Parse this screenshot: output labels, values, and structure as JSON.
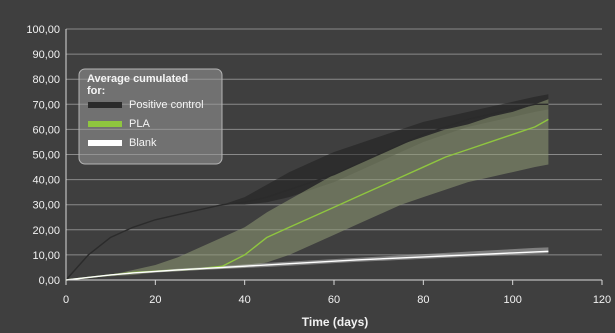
{
  "chart_data": {
    "type": "line",
    "title": "",
    "xlabel": "Time (days)",
    "ylabel": "",
    "xlim": [
      0,
      120
    ],
    "ylim": [
      0,
      100
    ],
    "x_ticks": [
      "0",
      "20",
      "40",
      "60",
      "80",
      "100",
      "120"
    ],
    "y_ticks": [
      "0,00",
      "10,00",
      "20,00",
      "30,00",
      "40,00",
      "50,00",
      "60,00",
      "70,00",
      "80,00",
      "90,00",
      "100,00"
    ],
    "grid": true,
    "legend": {
      "title": "Average cumulated for:",
      "placement": "top-left",
      "entries": [
        "Positive control",
        "PLA",
        "Blank"
      ]
    },
    "series": [
      {
        "name": "Positive control",
        "color": "#2b2b2b",
        "x": [
          0,
          5,
          10,
          15,
          20,
          25,
          30,
          35,
          40,
          45,
          50,
          55,
          60,
          65,
          70,
          75,
          80,
          85,
          90,
          95,
          100,
          105,
          108
        ],
        "y": [
          0,
          10,
          17,
          21,
          24,
          26,
          28,
          30,
          31,
          33,
          36,
          39,
          42,
          46,
          50,
          54,
          58,
          61,
          64,
          66,
          68,
          70,
          70
        ],
        "band_upper": [
          0,
          10,
          17,
          21,
          24,
          26,
          28,
          30,
          33,
          38,
          43,
          47,
          51,
          54,
          57,
          60,
          63,
          65,
          67,
          69,
          71,
          73,
          74
        ],
        "band_lower": [
          0,
          10,
          17,
          21,
          24,
          26,
          28,
          30,
          30,
          31,
          33,
          36,
          39,
          43,
          47,
          51,
          55,
          58,
          61,
          63,
          65,
          67,
          68
        ]
      },
      {
        "name": "PLA",
        "color": "#8fc63f",
        "x": [
          0,
          5,
          10,
          15,
          20,
          25,
          30,
          35,
          40,
          45,
          50,
          55,
          60,
          65,
          70,
          75,
          80,
          85,
          90,
          95,
          100,
          105,
          108
        ],
        "y": [
          0,
          1,
          2,
          3,
          3.5,
          4,
          4.5,
          5.5,
          10,
          17,
          21,
          25,
          29,
          33,
          37,
          41,
          45,
          49,
          52,
          55,
          58,
          61,
          64
        ],
        "band_upper": [
          0,
          1,
          2,
          4,
          6,
          9,
          13,
          17,
          21,
          27,
          32,
          37,
          42,
          46,
          50,
          54,
          57,
          60,
          62,
          65,
          67,
          70,
          72
        ],
        "band_lower": [
          0,
          1,
          1.5,
          2,
          3,
          3.5,
          4,
          4.5,
          5,
          7,
          10,
          14,
          18,
          22,
          26,
          30,
          33,
          36,
          39,
          41,
          43,
          45,
          46
        ]
      },
      {
        "name": "Blank",
        "color": "#ffffff",
        "x": [
          0,
          5,
          10,
          15,
          20,
          25,
          30,
          35,
          40,
          45,
          50,
          55,
          60,
          65,
          70,
          75,
          80,
          85,
          90,
          95,
          100,
          105,
          108
        ],
        "y": [
          0,
          1,
          2,
          2.8,
          3.4,
          4,
          4.5,
          5,
          5.5,
          6,
          6.5,
          7,
          7.5,
          8,
          8.4,
          8.8,
          9.2,
          9.6,
          10,
          10.4,
          10.8,
          11.2,
          11.4
        ],
        "band_upper": [
          0,
          1,
          2,
          3,
          3.8,
          4.5,
          5,
          5.6,
          6.2,
          6.8,
          7.3,
          7.8,
          8.3,
          8.8,
          9.3,
          9.8,
          10.3,
          10.8,
          11.3,
          11.8,
          12.3,
          12.8,
          13
        ],
        "band_lower": [
          0,
          1,
          1.8,
          2.6,
          3,
          3.5,
          4,
          4.4,
          4.8,
          5.2,
          5.7,
          6.2,
          6.7,
          7.2,
          7.6,
          8,
          8.4,
          8.8,
          9.2,
          9.6,
          10,
          10.4,
          10.6
        ]
      }
    ]
  }
}
